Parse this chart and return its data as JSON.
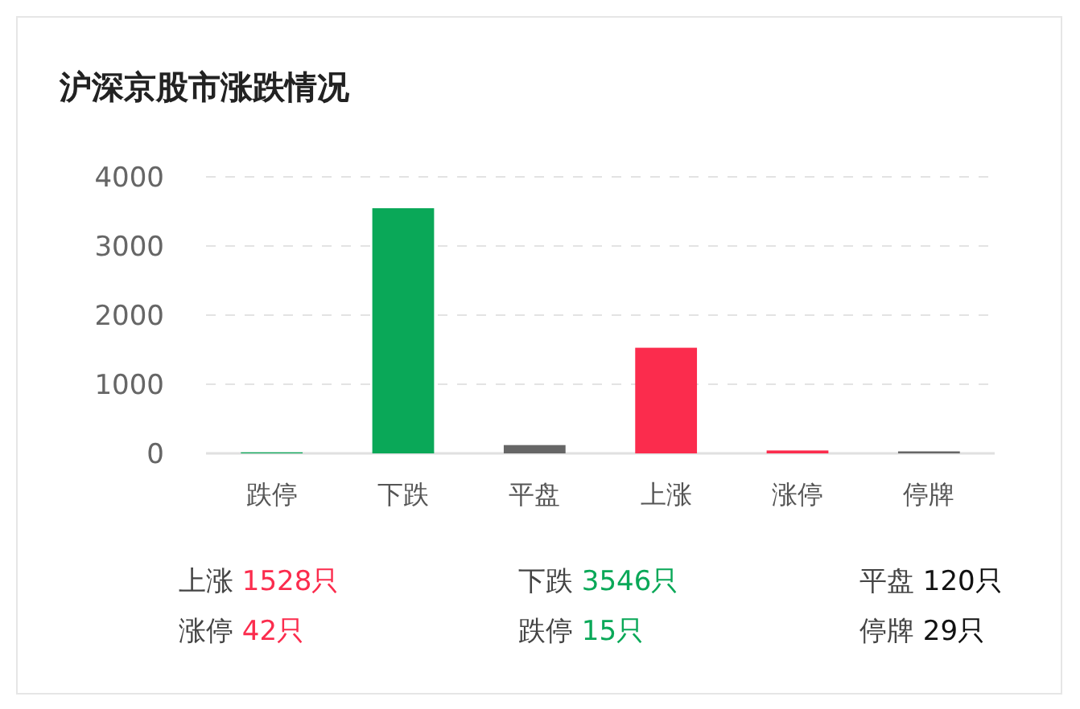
{
  "chart_data": {
    "type": "bar",
    "title": "沪深京股市涨跌情况",
    "categories": [
      "跌停",
      "下跌",
      "平盘",
      "上涨",
      "涨停",
      "停牌"
    ],
    "values": [
      15,
      3546,
      120,
      1528,
      42,
      29
    ],
    "colors": [
      "#0aa858",
      "#0aa858",
      "#666666",
      "#fb2c4d",
      "#fb2c4d",
      "#666666"
    ],
    "annotations": [
      "上涨 1528只",
      "下跌 3546只",
      "平盘 120只",
      "涨停 42只",
      "跌停 15只",
      "停牌 29只"
    ],
    "ylim": [
      0,
      4000
    ],
    "yticks": [
      0,
      1000,
      2000,
      3000,
      4000
    ],
    "grid": "y"
  }
}
